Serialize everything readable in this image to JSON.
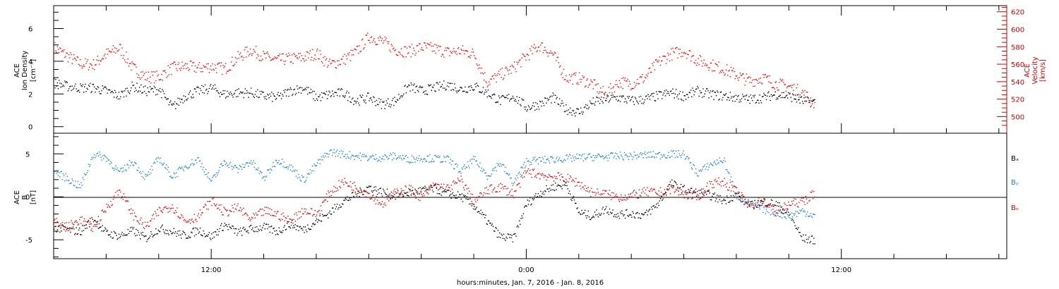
{
  "chart_data": [
    {
      "type": "scatter",
      "panel": "top",
      "ylabel": [
        "ACE",
        "Ion Density",
        "[cm⁻³]"
      ],
      "ylim": [
        -0.4,
        7.4
      ],
      "yticks": [
        0,
        2,
        4,
        6
      ],
      "y2label": [
        "ACE",
        "Velocity",
        "[km/s]"
      ],
      "y2lim": [
        481,
        627
      ],
      "y2ticks": [
        500,
        520,
        540,
        560,
        580,
        600,
        620
      ],
      "xlim": [
        6,
        42.3
      ],
      "series": [
        {
          "color": "#000000",
          "axis": "left",
          "x": [
            6.0,
            6.5,
            7.0,
            7.5,
            8.0,
            8.5,
            9.0,
            9.5,
            10.0,
            10.5,
            11.0,
            11.5,
            12.0,
            12.5,
            13.0,
            13.5,
            14.0,
            14.5,
            15.0,
            15.5,
            16.0,
            16.5,
            17.0,
            17.5,
            18.0,
            18.5,
            19.0,
            19.5,
            20.0,
            20.5,
            21.0,
            21.5,
            22.0,
            22.5,
            23.0,
            23.5,
            24.0,
            24.5,
            25.0,
            25.5,
            26.0,
            26.5,
            27.0,
            27.5,
            28.0,
            28.5,
            29.0,
            29.5,
            30.0,
            30.5,
            31.0,
            31.5,
            32.0,
            32.5,
            33.0,
            33.5,
            34.0,
            34.5,
            35.0
          ],
          "y": [
            2.7,
            2.5,
            2.4,
            2.4,
            2.2,
            1.9,
            2.5,
            2.2,
            2.3,
            1.2,
            1.9,
            2.2,
            2.4,
            2.0,
            2.1,
            2.1,
            1.9,
            1.8,
            2.2,
            2.4,
            1.8,
            2.0,
            2.1,
            1.6,
            1.8,
            1.4,
            1.6,
            2.5,
            2.2,
            2.4,
            2.6,
            2.3,
            2.5,
            2.1,
            1.6,
            1.9,
            1.2,
            1.4,
            1.8,
            1.1,
            0.9,
            1.5,
            1.7,
            1.8,
            1.6,
            1.7,
            1.9,
            2.1,
            1.9,
            2.2,
            2.0,
            1.9,
            1.8,
            1.7,
            1.8,
            2.0,
            1.9,
            1.6,
            1.5
          ]
        },
        {
          "color": "#ff0000",
          "axis": "right",
          "x": [
            6.0,
            6.5,
            7.0,
            7.5,
            8.0,
            8.5,
            9.0,
            9.5,
            10.0,
            10.5,
            11.0,
            11.5,
            12.0,
            12.5,
            13.0,
            13.5,
            14.0,
            14.5,
            15.0,
            15.5,
            16.0,
            16.5,
            17.0,
            17.5,
            18.0,
            18.5,
            19.0,
            19.5,
            20.0,
            20.5,
            21.0,
            21.5,
            22.0,
            22.5,
            23.0,
            23.5,
            24.0,
            24.5,
            25.0,
            25.5,
            26.0,
            26.5,
            27.0,
            27.5,
            28.0,
            28.5,
            29.0,
            29.5,
            30.0,
            30.5,
            31.0,
            31.5,
            32.0,
            32.5,
            33.0,
            33.5,
            34.0,
            34.5,
            35.0
          ],
          "y": [
            580,
            570,
            561,
            560,
            572,
            579,
            556,
            546,
            546,
            556,
            558,
            556,
            558,
            555,
            568,
            577,
            569,
            565,
            567,
            568,
            573,
            560,
            565,
            574,
            592,
            587,
            577,
            575,
            580,
            578,
            574,
            576,
            572,
            540,
            548,
            556,
            570,
            582,
            572,
            545,
            544,
            538,
            526,
            540,
            538,
            545,
            562,
            572,
            576,
            565,
            560,
            555,
            548,
            541,
            545,
            538,
            535,
            528,
            515
          ]
        }
      ]
    },
    {
      "type": "scatter",
      "panel": "bottom",
      "ylabel": [
        "ACE",
        "B",
        "[nT]"
      ],
      "ylim": [
        -7.2,
        7.4
      ],
      "yticks": [
        -5,
        0,
        5
      ],
      "xlabel": "hours:minutes, Jan.  7, 2016 - Jan.  8, 2016",
      "xlim": [
        6,
        42.3
      ],
      "xticks": [
        12,
        24,
        36
      ],
      "xtick_labels": [
        "12:00",
        "0:00",
        "12:00"
      ],
      "legend": [
        "Bₓ",
        "Bᵧ",
        "Bₒ"
      ],
      "series": [
        {
          "name": "Bₓ",
          "color": "#000000",
          "x": [
            6.0,
            6.5,
            7.0,
            7.5,
            8.0,
            8.5,
            9.0,
            9.5,
            10.0,
            10.5,
            11.0,
            11.5,
            12.0,
            12.5,
            13.0,
            13.5,
            14.0,
            14.5,
            15.0,
            15.5,
            16.0,
            16.5,
            17.0,
            17.5,
            18.0,
            18.5,
            19.0,
            19.5,
            20.0,
            20.5,
            21.0,
            21.5,
            22.0,
            22.5,
            23.0,
            23.5,
            24.0,
            24.5,
            25.0,
            25.5,
            26.0,
            26.5,
            27.0,
            27.5,
            28.0,
            28.5,
            29.0,
            29.5,
            30.0,
            30.5,
            31.0,
            31.5,
            32.0,
            32.5,
            33.0,
            33.5,
            34.0,
            34.5,
            35.0
          ],
          "y": [
            -3.5,
            -3.8,
            -4.0,
            -2.5,
            -4.2,
            -4.5,
            -3.9,
            -4.8,
            -3.6,
            -4.0,
            -4.5,
            -3.8,
            -4.6,
            -3.2,
            -4.1,
            -3.7,
            -3.5,
            -4.0,
            -3.1,
            -3.8,
            -2.8,
            -1.8,
            -0.5,
            0.3,
            1.2,
            0.6,
            0.2,
            0.5,
            0.8,
            1.0,
            0.4,
            0.1,
            -1.0,
            -2.8,
            -4.6,
            -4.8,
            -0.8,
            0.5,
            1.2,
            1.5,
            -1.8,
            -2.2,
            -1.4,
            -2.0,
            -1.9,
            -2.1,
            -0.8,
            1.6,
            0.9,
            0.5,
            0.2,
            -0.4,
            0.3,
            -1.0,
            -0.5,
            -0.8,
            -2.0,
            -4.8,
            -5.0
          ]
        },
        {
          "name": "Bᵧ",
          "color": "#1a80d9",
          "x": [
            6.0,
            6.5,
            7.0,
            7.5,
            8.0,
            8.5,
            9.0,
            9.5,
            10.0,
            10.5,
            11.0,
            11.5,
            12.0,
            12.5,
            13.0,
            13.5,
            14.0,
            14.5,
            15.0,
            15.5,
            16.0,
            16.5,
            17.0,
            17.5,
            18.0,
            18.5,
            19.0,
            19.5,
            20.0,
            20.5,
            21.0,
            21.5,
            22.0,
            22.5,
            23.0,
            23.5,
            24.0,
            24.5,
            25.0,
            25.5,
            26.0,
            26.5,
            27.0,
            27.5,
            28.0,
            28.5,
            29.0,
            29.5,
            30.0,
            30.5,
            31.0,
            31.5,
            32.0,
            32.5,
            33.0,
            33.5,
            34.0,
            34.5,
            35.0
          ],
          "y": [
            3.0,
            2.2,
            1.2,
            5.0,
            4.6,
            2.8,
            4.2,
            2.2,
            4.6,
            2.4,
            3.6,
            4.4,
            1.8,
            4.2,
            3.2,
            4.2,
            2.2,
            4.4,
            3.5,
            2.0,
            3.8,
            5.3,
            5.0,
            4.8,
            4.6,
            4.6,
            4.8,
            4.4,
            4.6,
            4.5,
            4.4,
            3.0,
            4.4,
            2.5,
            4.0,
            1.6,
            4.2,
            4.3,
            4.4,
            4.5,
            4.6,
            4.7,
            4.7,
            4.8,
            4.8,
            4.9,
            4.9,
            5.0,
            5.0,
            2.8,
            3.8,
            4.4,
            0.2,
            -0.8,
            -1.4,
            -1.8,
            -2.2,
            -1.6,
            -2.2
          ]
        },
        {
          "name": "Bₒ",
          "color": "#e60000",
          "x": [
            6.0,
            6.5,
            7.0,
            7.5,
            8.0,
            8.5,
            9.0,
            9.5,
            10.0,
            10.5,
            11.0,
            11.5,
            12.0,
            12.5,
            13.0,
            13.5,
            14.0,
            14.5,
            15.0,
            15.5,
            16.0,
            16.5,
            17.0,
            17.5,
            18.0,
            18.5,
            19.0,
            19.5,
            20.0,
            20.5,
            21.0,
            21.5,
            22.0,
            22.5,
            23.0,
            23.5,
            24.0,
            24.5,
            25.0,
            25.5,
            26.0,
            26.5,
            27.0,
            27.5,
            28.0,
            28.5,
            29.0,
            29.5,
            30.0,
            30.5,
            31.0,
            31.5,
            32.0,
            32.5,
            33.0,
            33.5,
            34.0,
            34.5,
            35.0
          ],
          "y": [
            -2.8,
            -3.5,
            -2.6,
            -3.6,
            -1.2,
            0.8,
            -2.0,
            -3.5,
            -1.6,
            -1.0,
            -2.8,
            -2.2,
            -0.4,
            -1.8,
            -1.2,
            -2.6,
            -1.6,
            -2.0,
            -2.8,
            -1.5,
            -2.0,
            0.5,
            1.8,
            1.2,
            0.4,
            -0.8,
            0.5,
            1.0,
            0.0,
            1.4,
            1.0,
            2.0,
            -0.5,
            0.8,
            1.2,
            0.4,
            3.0,
            2.6,
            2.4,
            2.2,
            1.6,
            0.5,
            0.4,
            0.0,
            0.2,
            0.6,
            0.5,
            1.0,
            0.4,
            0.0,
            1.6,
            1.8,
            0.6,
            -1.0,
            -0.4,
            -1.8,
            -0.8,
            -0.5,
            0.5
          ]
        }
      ]
    }
  ]
}
